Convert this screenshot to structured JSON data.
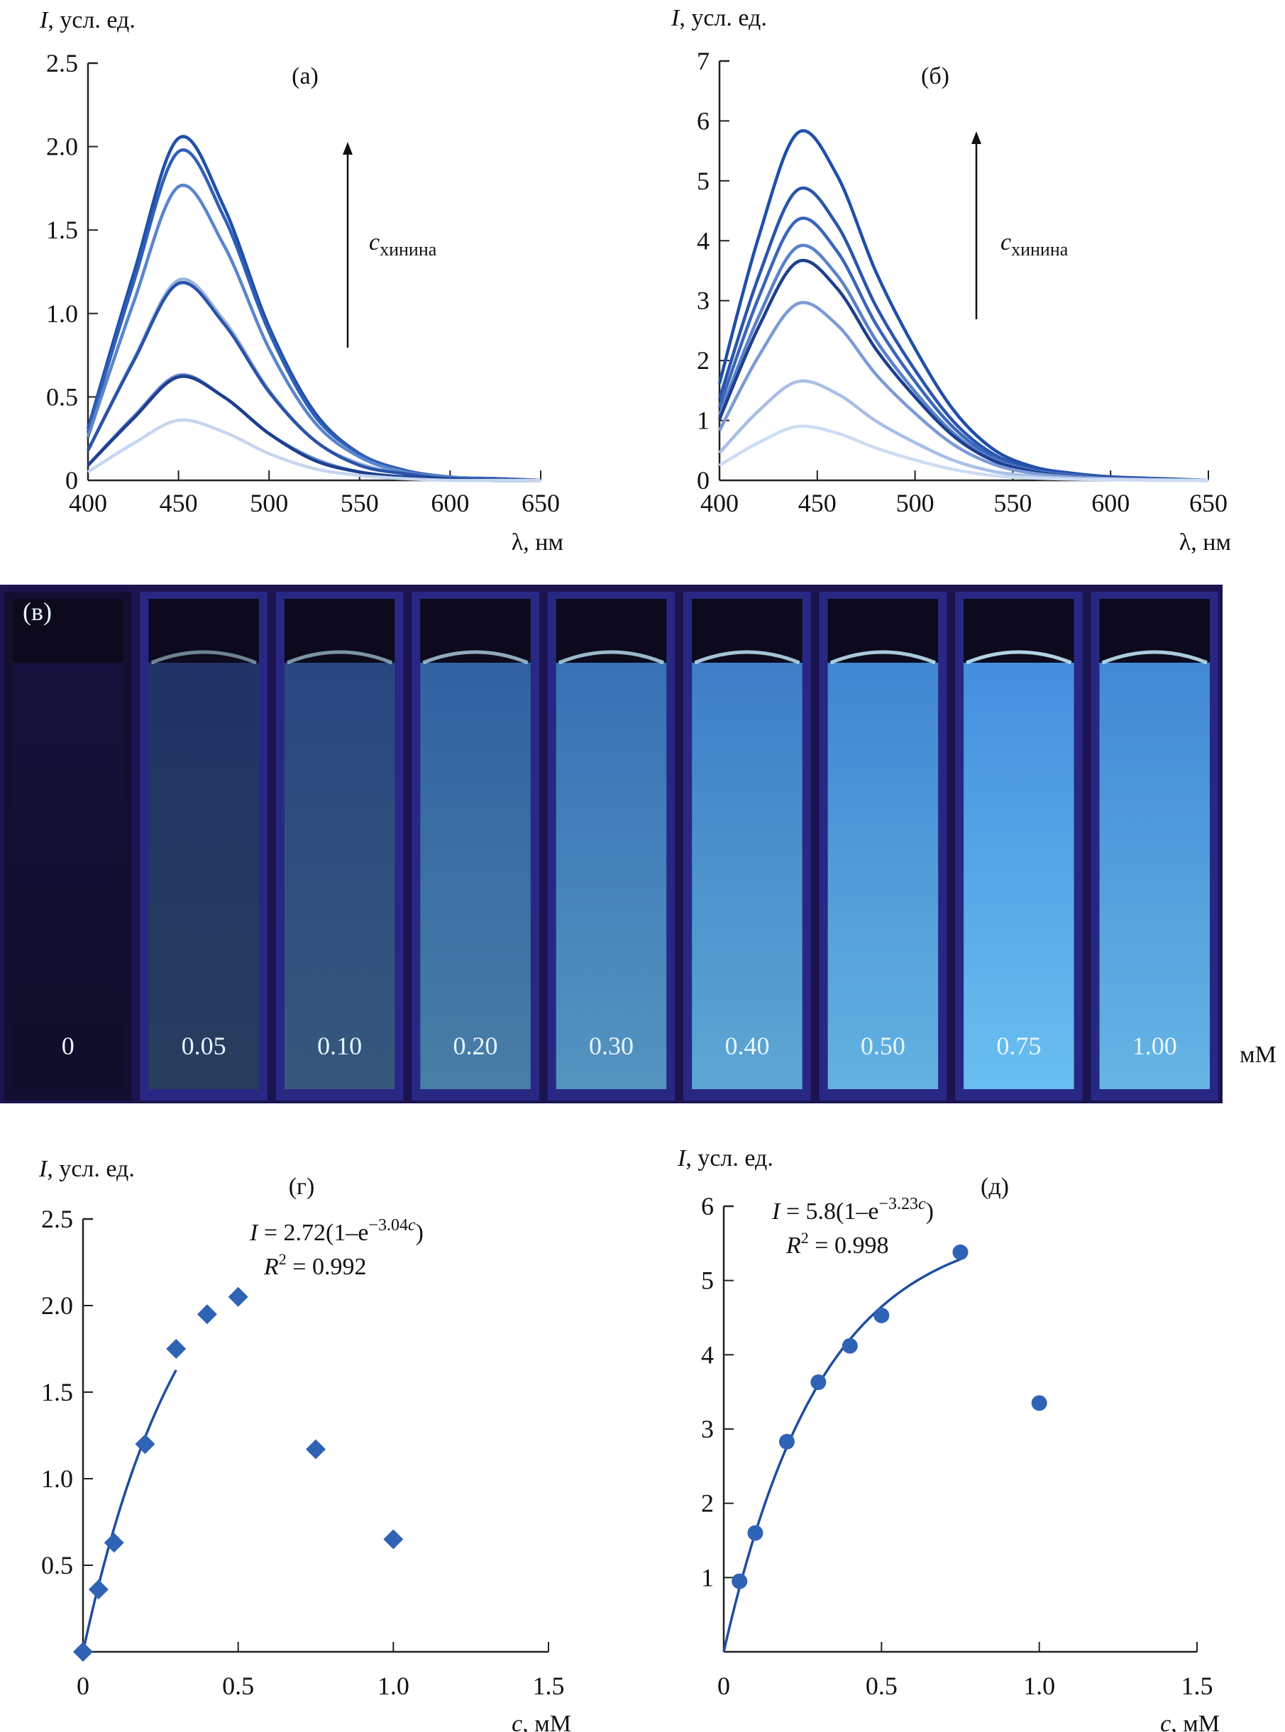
{
  "chart_data": [
    {
      "id": "a",
      "type": "line",
      "panel_label": "(а)",
      "ylabel_symbol": "I",
      "ylabel_rest": ", усл. ед.",
      "xlabel": "λ, нм",
      "annotation_symbol": "c",
      "annotation_sub": "хинина",
      "xlim": [
        400,
        650
      ],
      "ylim": [
        0,
        2.5
      ],
      "xticks": [
        "400",
        "450",
        "500",
        "550",
        "600",
        "650"
      ],
      "yticks": [
        "0",
        "0.5",
        "1.0",
        "1.5",
        "2.0",
        "2.5"
      ],
      "x": [
        400,
        425,
        450,
        475,
        500,
        525,
        550,
        575,
        600,
        625,
        650
      ],
      "series": [
        {
          "color": "#1f4fa8",
          "values": [
            0.31,
            1.23,
            2.05,
            1.64,
            0.92,
            0.41,
            0.16,
            0.06,
            0.02,
            0.01,
            0
          ]
        },
        {
          "color": "#2f5fb8",
          "values": [
            0.29,
            1.18,
            1.97,
            1.58,
            0.89,
            0.39,
            0.16,
            0.06,
            0.02,
            0.01,
            0
          ]
        },
        {
          "color": "#5a86cc",
          "values": [
            0.26,
            1.06,
            1.76,
            1.41,
            0.79,
            0.35,
            0.14,
            0.05,
            0.02,
            0.01,
            0
          ]
        },
        {
          "color": "#9ab3df",
          "values": [
            0.18,
            0.72,
            1.2,
            0.96,
            0.54,
            0.24,
            0.1,
            0.04,
            0.01,
            0.01,
            0
          ]
        },
        {
          "color": "#2a52a8",
          "values": [
            0.18,
            0.71,
            1.18,
            0.94,
            0.53,
            0.24,
            0.09,
            0.04,
            0.01,
            0.01,
            0
          ]
        },
        {
          "color": "#6f8fcf",
          "values": [
            0.09,
            0.38,
            0.63,
            0.5,
            0.28,
            0.13,
            0.05,
            0.02,
            0.01,
            0,
            0
          ]
        },
        {
          "color": "#1e3f8f",
          "values": [
            0.09,
            0.37,
            0.62,
            0.5,
            0.28,
            0.12,
            0.05,
            0.02,
            0.01,
            0,
            0
          ]
        },
        {
          "color": "#c6d6f0",
          "values": [
            0.05,
            0.22,
            0.36,
            0.29,
            0.16,
            0.07,
            0.03,
            0.01,
            0,
            0,
            0
          ]
        }
      ]
    },
    {
      "id": "b",
      "type": "line",
      "panel_label": "(б)",
      "ylabel_symbol": "I",
      "ylabel_rest": ", усл. ед.",
      "xlabel": "λ, нм",
      "annotation_symbol": "c",
      "annotation_sub": "хинина",
      "xlim": [
        400,
        650
      ],
      "ylim": [
        0,
        7
      ],
      "xticks": [
        "400",
        "450",
        "500",
        "550",
        "600",
        "650"
      ],
      "yticks": [
        "0",
        "1",
        "2",
        "3",
        "4",
        "5",
        "6",
        "7"
      ],
      "x": [
        400,
        420,
        440,
        460,
        480,
        500,
        520,
        540,
        560,
        580,
        600,
        625,
        650
      ],
      "series": [
        {
          "color": "#1f4fa8",
          "values": [
            1.62,
            4.06,
            5.8,
            5.1,
            3.48,
            2.2,
            1.16,
            0.52,
            0.23,
            0.12,
            0.06,
            0.03,
            0
          ]
        },
        {
          "color": "#2a55ad",
          "values": [
            1.36,
            3.4,
            4.85,
            4.27,
            2.91,
            1.84,
            0.97,
            0.44,
            0.19,
            0.1,
            0.05,
            0.02,
            0
          ]
        },
        {
          "color": "#3a66bb",
          "values": [
            1.22,
            3.05,
            4.35,
            3.83,
            2.61,
            1.65,
            0.87,
            0.39,
            0.17,
            0.09,
            0.04,
            0.02,
            0
          ]
        },
        {
          "color": "#5a82c8",
          "values": [
            1.09,
            2.73,
            3.9,
            3.43,
            2.34,
            1.48,
            0.78,
            0.35,
            0.16,
            0.08,
            0.04,
            0.02,
            0
          ]
        },
        {
          "color": "#1e3f8f",
          "values": [
            1.02,
            2.56,
            3.65,
            3.21,
            2.19,
            1.39,
            0.73,
            0.33,
            0.15,
            0.07,
            0.04,
            0.02,
            0
          ]
        },
        {
          "color": "#7b9bd5",
          "values": [
            0.83,
            2.07,
            2.95,
            2.6,
            1.77,
            1.12,
            0.59,
            0.27,
            0.12,
            0.06,
            0.03,
            0.01,
            0
          ]
        },
        {
          "color": "#a9bfe6",
          "values": [
            0.46,
            1.16,
            1.65,
            1.45,
            0.99,
            0.63,
            0.33,
            0.15,
            0.07,
            0.03,
            0.02,
            0.01,
            0
          ]
        },
        {
          "color": "#cddcf3",
          "values": [
            0.25,
            0.63,
            0.9,
            0.79,
            0.54,
            0.34,
            0.18,
            0.08,
            0.04,
            0.02,
            0.01,
            0,
            0
          ]
        }
      ]
    },
    {
      "id": "g",
      "type": "scatter",
      "panel_label": "(г)",
      "marker": "diamond",
      "color": "#2f63b5",
      "ylabel_symbol": "I",
      "ylabel_rest": ", усл. ед.",
      "xlabel_symbol": "c",
      "xlabel_rest": ", мМ",
      "xlim": [
        0,
        1.5
      ],
      "ylim": [
        0,
        2.5
      ],
      "xticks": [
        "0",
        "0.5",
        "1.0",
        "1.5"
      ],
      "yticks": [
        "0.5",
        "1.0",
        "1.5",
        "2.0",
        "2.5"
      ],
      "x": [
        0,
        0.05,
        0.1,
        0.2,
        0.3,
        0.4,
        0.5,
        0.75,
        1.0
      ],
      "y": [
        0,
        0.36,
        0.63,
        1.2,
        1.75,
        1.95,
        2.05,
        1.17,
        0.65
      ],
      "fit": {
        "A": 2.72,
        "k": 3.04,
        "range": [
          0,
          0.3
        ]
      },
      "equation": {
        "lhs": "I",
        "main": " = 2.72(1–e",
        "exp": "−3.04",
        "exp_var": "c",
        "close": ")",
        "r2_sym": "R",
        "r2_sup": "2",
        "r2_val": " = 0.992"
      }
    },
    {
      "id": "d",
      "type": "scatter",
      "panel_label": "(д)",
      "marker": "circle",
      "color": "#2f63b5",
      "ylabel_symbol": "I",
      "ylabel_rest": ", усл. ед.",
      "xlabel_symbol": "c",
      "xlabel_rest": ", мМ",
      "xlim": [
        0,
        1.5
      ],
      "ylim": [
        0,
        6
      ],
      "xticks": [
        "0",
        "0.5",
        "1.0",
        "1.5"
      ],
      "yticks": [
        "1",
        "2",
        "3",
        "4",
        "5",
        "6"
      ],
      "x": [
        0.05,
        0.1,
        0.2,
        0.3,
        0.4,
        0.5,
        0.75,
        1.0
      ],
      "y": [
        0.95,
        1.6,
        2.83,
        3.63,
        4.12,
        4.53,
        5.38,
        3.35
      ],
      "fit": {
        "A": 5.8,
        "k": 3.23,
        "range": [
          0,
          0.75
        ]
      },
      "equation": {
        "lhs": "I",
        "main": " = 5.8(1–e",
        "exp": "−3.23",
        "exp_var": "c",
        "close": ")",
        "r2_sym": "R",
        "r2_sup": "2",
        "r2_val": " = 0.998"
      }
    }
  ],
  "photo": {
    "panel_label": "(в)",
    "unit": "мМ",
    "cuvettes": [
      {
        "label": "0",
        "intensity": 0
      },
      {
        "label": "0.05",
        "intensity": 0.25
      },
      {
        "label": "0.10",
        "intensity": 0.4
      },
      {
        "label": "0.20",
        "intensity": 0.6
      },
      {
        "label": "0.30",
        "intensity": 0.72
      },
      {
        "label": "0.40",
        "intensity": 0.82
      },
      {
        "label": "0.50",
        "intensity": 0.88
      },
      {
        "label": "0.75",
        "intensity": 0.95
      },
      {
        "label": "1.00",
        "intensity": 0.9
      }
    ]
  }
}
